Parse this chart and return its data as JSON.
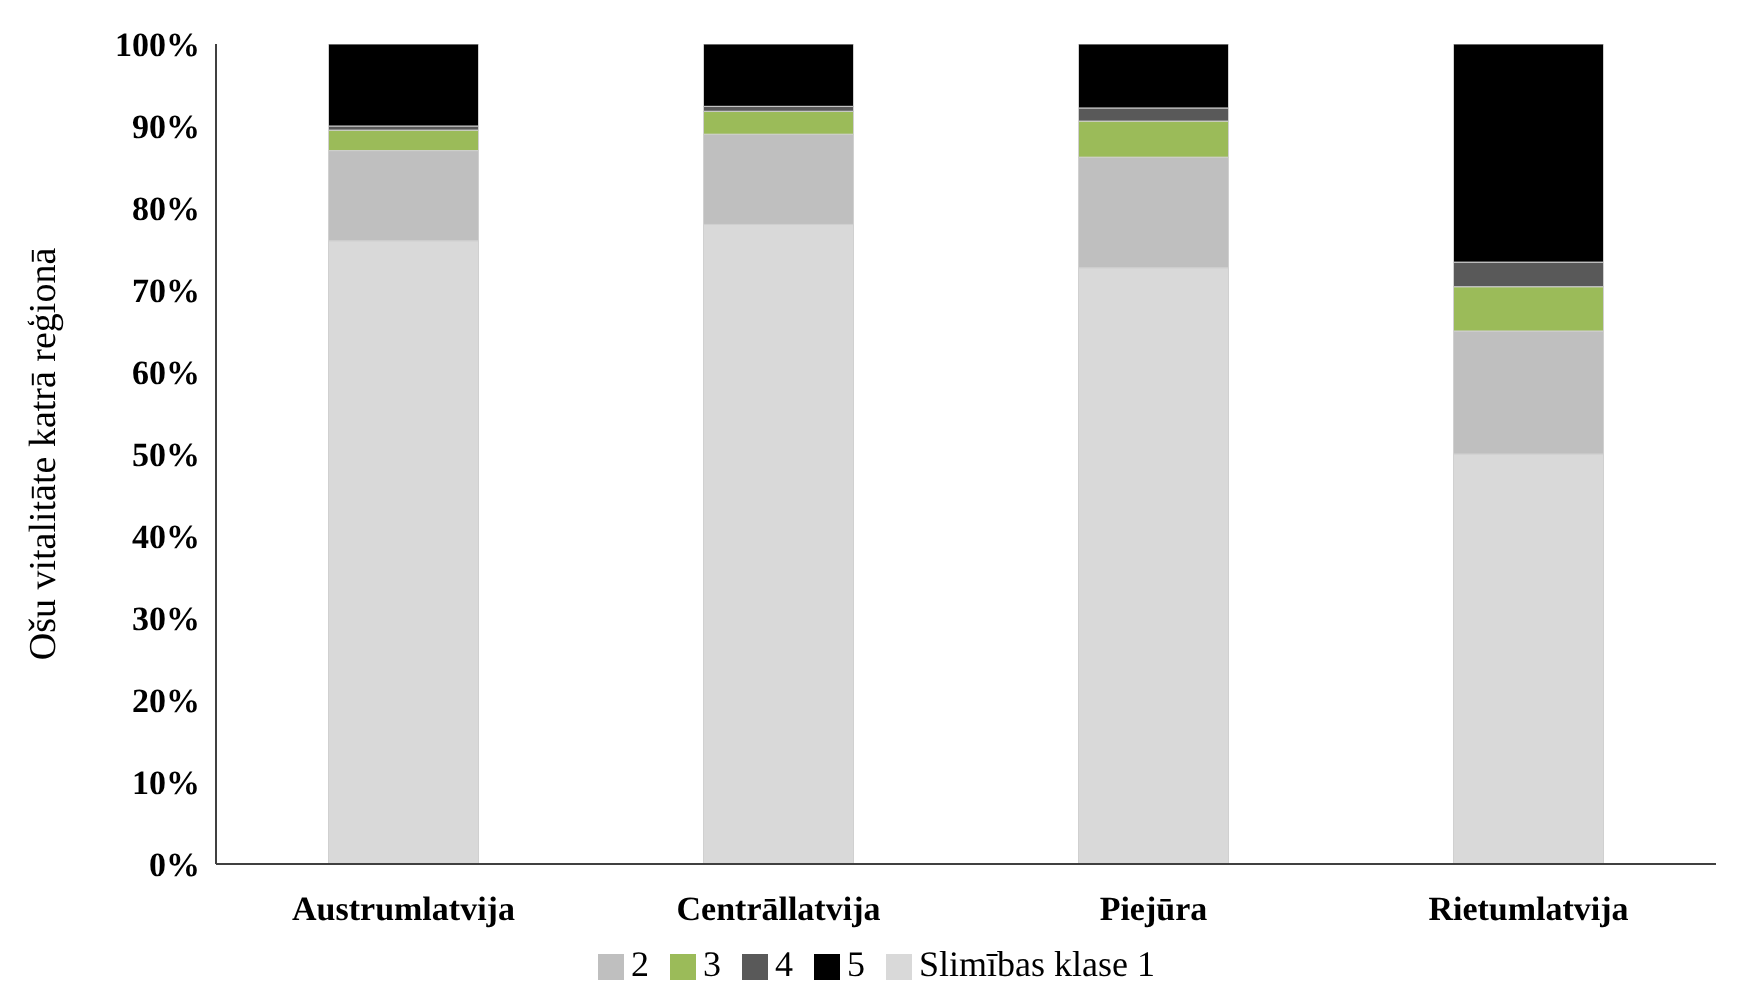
{
  "chart_data": {
    "type": "bar",
    "stacked": true,
    "ylabel": "Ošu vitalitāte katrā reģionā",
    "categories": [
      "Austrumlatvija",
      "Centrāllatvija",
      "Piejūra",
      "Rietumlatvija"
    ],
    "series": [
      {
        "name": "Slimības klase 1",
        "color": "#d9d9d9",
        "values": [
          76,
          78,
          72.7,
          50
        ]
      },
      {
        "name": "2",
        "color": "#bfbfbf",
        "values": [
          11,
          11,
          13.5,
          15
        ]
      },
      {
        "name": "3",
        "color": "#9bbb59",
        "values": [
          2.5,
          2.8,
          4.4,
          5.4
        ]
      },
      {
        "name": "4",
        "color": "#595959",
        "values": [
          0.5,
          0.6,
          1.6,
          3
        ]
      },
      {
        "name": "5",
        "color": "#000000",
        "values": [
          10,
          7.6,
          7.8,
          26.6
        ]
      }
    ],
    "ylim": [
      0,
      100
    ],
    "yticks": [
      {
        "value": 0,
        "label": "0%"
      },
      {
        "value": 10,
        "label": "10%"
      },
      {
        "value": 20,
        "label": "20%"
      },
      {
        "value": 30,
        "label": "30%"
      },
      {
        "value": 40,
        "label": "40%"
      },
      {
        "value": 50,
        "label": "50%"
      },
      {
        "value": 60,
        "label": "60%"
      },
      {
        "value": 70,
        "label": "70%"
      },
      {
        "value": 80,
        "label": "80%"
      },
      {
        "value": 90,
        "label": "90%"
      },
      {
        "value": 100,
        "label": "100%"
      }
    ],
    "grid": false,
    "legend": "bottom"
  }
}
